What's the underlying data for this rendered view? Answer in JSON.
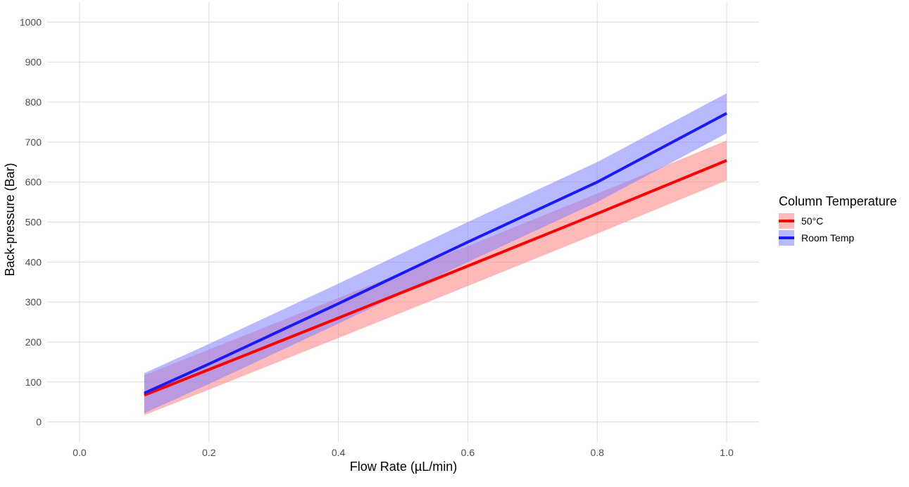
{
  "chart_data": {
    "type": "line",
    "title": "",
    "xlabel": "Flow Rate (µL/min)",
    "ylabel": "Back-pressure (Bar)",
    "xlim": [
      -0.05,
      1.05
    ],
    "ylim": [
      -50,
      1050
    ],
    "x_ticks": [
      0.0,
      0.2,
      0.4,
      0.6,
      0.8,
      1.0
    ],
    "x_tick_labels": [
      "0.0",
      "0.2",
      "0.4",
      "0.6",
      "0.8",
      "1.0"
    ],
    "y_ticks": [
      0,
      100,
      200,
      300,
      400,
      500,
      600,
      700,
      800,
      900,
      1000
    ],
    "y_tick_labels": [
      "0",
      "100",
      "200",
      "300",
      "400",
      "500",
      "600",
      "700",
      "800",
      "900",
      "1000"
    ],
    "grid": true,
    "legend": {
      "title": "Column Temperature",
      "placement": "right"
    },
    "x": [
      0.1,
      0.2,
      0.4,
      0.6,
      0.8,
      1.0
    ],
    "series": [
      {
        "name": "50°C",
        "color": "#ff0000",
        "ribbon_color": "#ff8080",
        "values": [
          67,
          131,
          260,
          390,
          521,
          654
        ],
        "lower": [
          17,
          81,
          210,
          340,
          471,
          604
        ],
        "upper": [
          117,
          181,
          310,
          440,
          571,
          704
        ]
      },
      {
        "name": "Room Temp",
        "color": "#1a1aff",
        "ribbon_color": "#8080ff",
        "values": [
          72,
          145,
          296,
          450,
          600,
          772
        ],
        "lower": [
          22,
          95,
          246,
          400,
          550,
          722
        ],
        "upper": [
          122,
          195,
          346,
          500,
          650,
          822
        ]
      }
    ]
  }
}
